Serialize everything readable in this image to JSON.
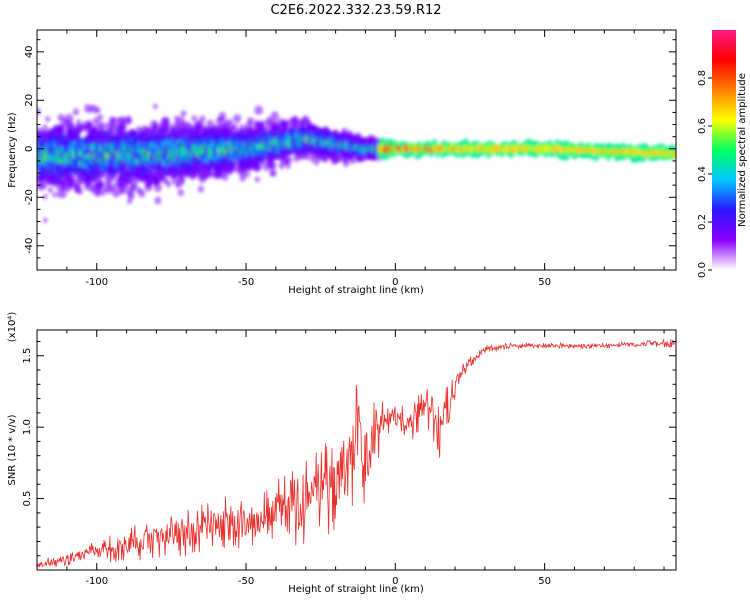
{
  "title": "C2E6.2022.332.23.59.R12",
  "colors": {
    "background": "#ffffff",
    "snr_line": "#e8302c",
    "axis": "#000000"
  },
  "chart_data": [
    {
      "type": "heatmap",
      "xlabel": "Height of straight line (km)",
      "ylabel": "Frequency (Hz)",
      "xlim": [
        -120,
        94
      ],
      "ylim": [
        -50,
        49
      ],
      "xticks": [
        -100,
        -50,
        0,
        50
      ],
      "xtick_labels": [
        "-100",
        "-50",
        "0",
        "50"
      ],
      "yticks": [
        -40,
        -20,
        0,
        20,
        40
      ],
      "ytick_labels": [
        "-40",
        "-20",
        "0",
        "20",
        "40"
      ],
      "colorbar": {
        "label": "Normalized spectral amplitude",
        "range": [
          0,
          1
        ],
        "ticks": [
          0.0,
          0.2,
          0.4,
          0.6,
          0.8
        ],
        "tick_labels": [
          "0.0",
          "0.2",
          "0.4",
          "0.6",
          "0.8"
        ],
        "colors": [
          "#ffffff",
          "#8a00ff",
          "#2a14ff",
          "#00c8ff",
          "#00ff60",
          "#ffff00",
          "#ff8000",
          "#ff0000",
          "#ff1a8a"
        ]
      },
      "description": "Noisy wide spread at low heights narrowing to a band near 0 Hz above 0 km",
      "spread_profile": {
        "height_km": [
          -120,
          -80,
          -50,
          -30,
          -10,
          0,
          20,
          50,
          94
        ],
        "center_hz": [
          -3,
          -2,
          0,
          4,
          0,
          0,
          0,
          0,
          -2
        ],
        "halfwidth_hz": [
          12,
          11,
          8,
          6,
          3,
          2,
          2,
          2,
          2
        ]
      }
    },
    {
      "type": "line",
      "xlabel": "Height of straight line (km)",
      "ylabel": "SNR (10 * v/v)",
      "scale_label": "(x10⁴)",
      "xlim": [
        -120,
        94
      ],
      "ylim": [
        0,
        1.68
      ],
      "xticks": [
        -100,
        -50,
        0,
        50
      ],
      "xtick_labels": [
        "-100",
        "-50",
        "0",
        "50"
      ],
      "yticks": [
        0.5,
        1.0,
        1.5
      ],
      "ytick_labels": [
        "0.5",
        "1.0",
        "1.5"
      ],
      "envelope": {
        "height_km": [
          -120,
          -110,
          -100,
          -90,
          -80,
          -70,
          -60,
          -50,
          -40,
          -30,
          -20,
          -15,
          -12,
          -10,
          -8,
          -5,
          0,
          5,
          10,
          15,
          20,
          25,
          30,
          40,
          50,
          60,
          70,
          80,
          94
        ],
        "snr_mean": [
          0.03,
          0.08,
          0.13,
          0.18,
          0.22,
          0.26,
          0.3,
          0.33,
          0.4,
          0.48,
          0.62,
          0.78,
          0.95,
          0.55,
          0.85,
          1.0,
          1.08,
          1.0,
          1.15,
          0.95,
          1.3,
          1.45,
          1.55,
          1.57,
          1.57,
          1.57,
          1.57,
          1.58,
          1.59
        ],
        "snr_noise_amp": [
          0.03,
          0.05,
          0.09,
          0.12,
          0.15,
          0.17,
          0.2,
          0.22,
          0.25,
          0.3,
          0.35,
          0.4,
          0.45,
          0.4,
          0.35,
          0.2,
          0.12,
          0.15,
          0.14,
          0.25,
          0.1,
          0.04,
          0.025,
          0.02,
          0.02,
          0.02,
          0.02,
          0.025,
          0.03
        ]
      }
    }
  ]
}
